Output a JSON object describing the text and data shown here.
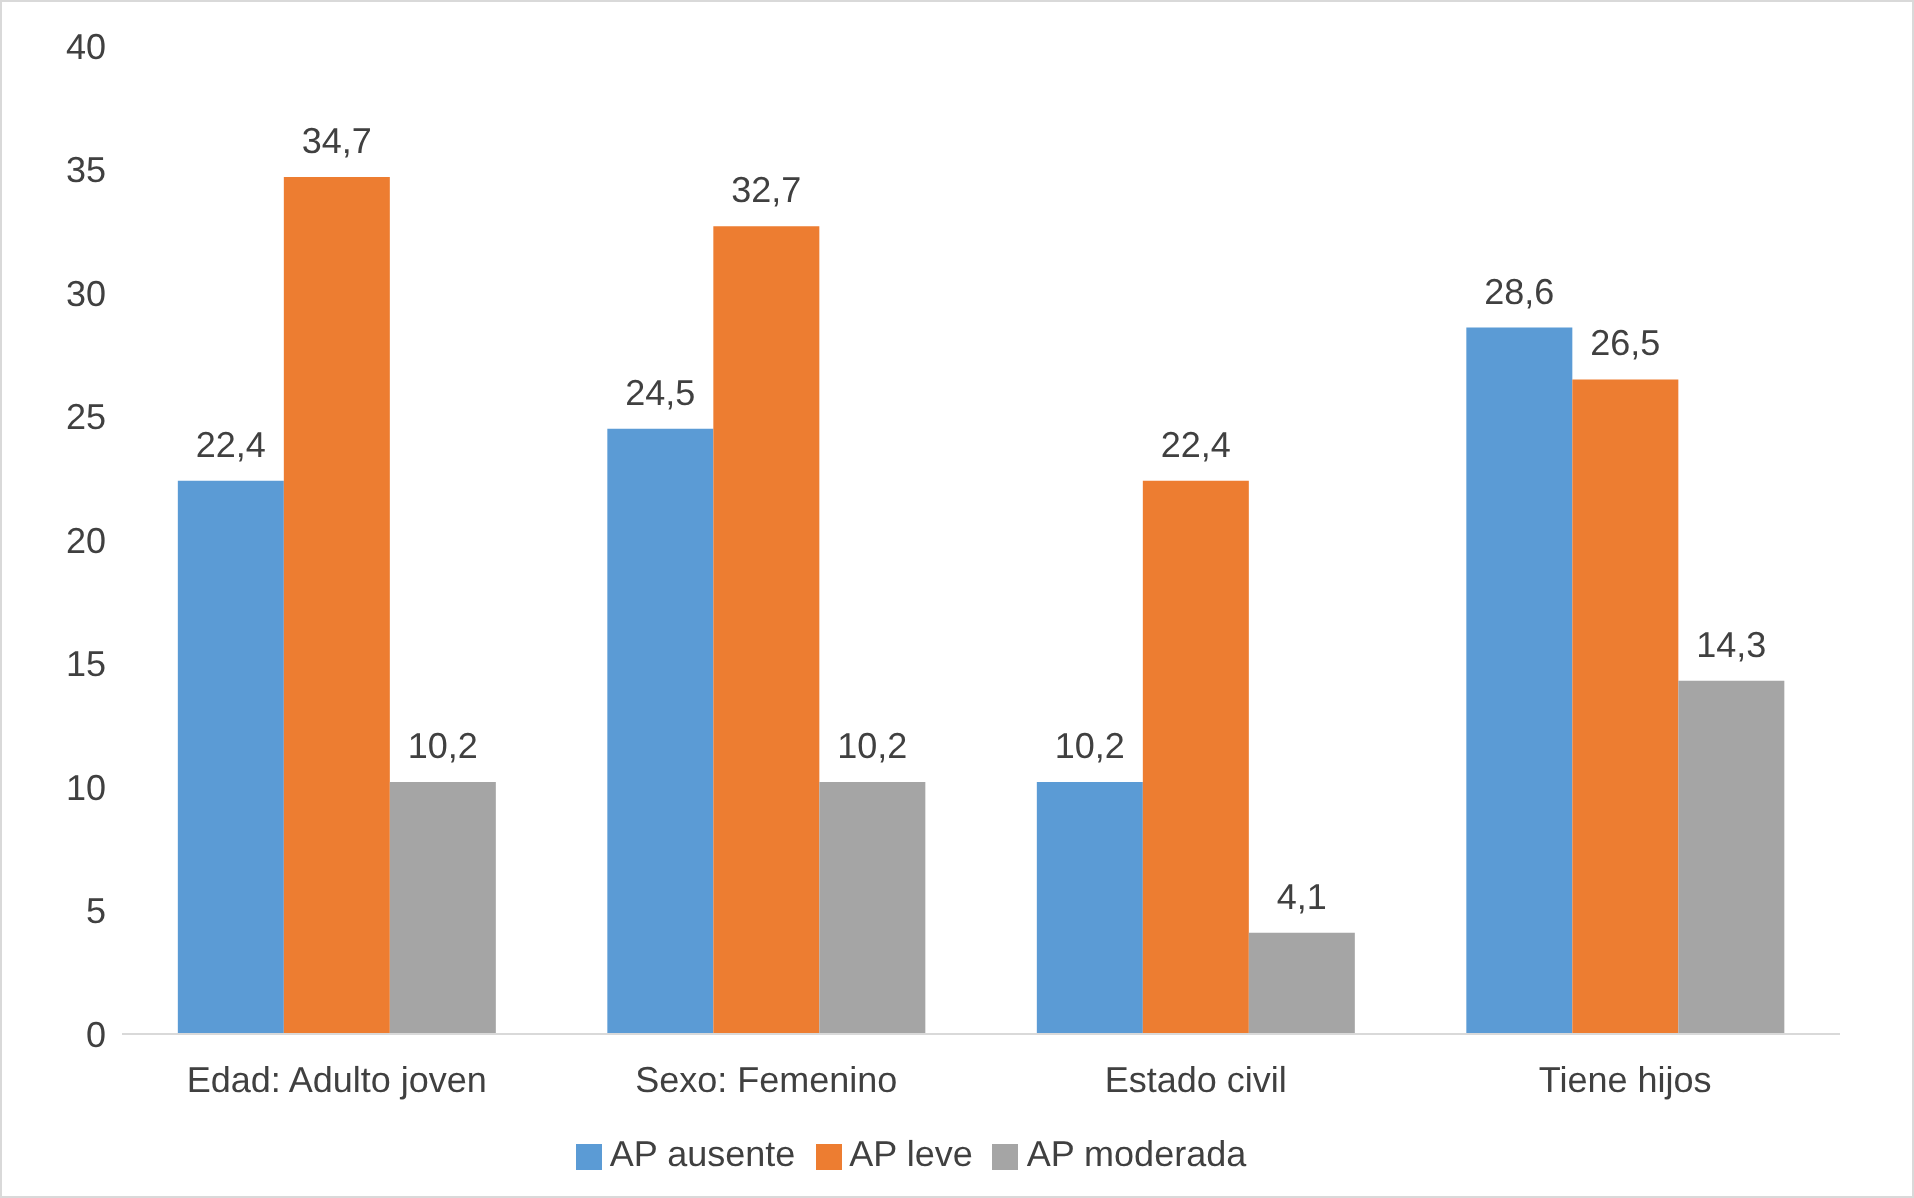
{
  "chart_data": {
    "type": "bar",
    "categories": [
      "Edad: Adulto joven",
      "Sexo: Femenino",
      "Estado civil",
      "Tiene hijos"
    ],
    "series": [
      {
        "name": "AP ausente",
        "color": "#5b9bd5",
        "values": [
          22.4,
          24.5,
          10.2,
          28.6
        ],
        "value_labels": [
          "22,4",
          "24,5",
          "10,2",
          "28,6"
        ]
      },
      {
        "name": "AP leve",
        "color": "#ed7d31",
        "values": [
          34.7,
          32.7,
          22.4,
          26.5
        ],
        "value_labels": [
          "34,7",
          "32,7",
          "22,4",
          "26,5"
        ]
      },
      {
        "name": "AP moderada",
        "color": "#a5a5a5",
        "values": [
          10.2,
          10.2,
          4.1,
          14.3
        ],
        "value_labels": [
          "10,2",
          "10,2",
          "4,1",
          "14,3"
        ]
      }
    ],
    "ylim": [
      0,
      40
    ],
    "yticks": [
      0,
      5,
      10,
      15,
      20,
      25,
      30,
      35,
      40
    ],
    "grid": false,
    "legend": "bottom"
  }
}
